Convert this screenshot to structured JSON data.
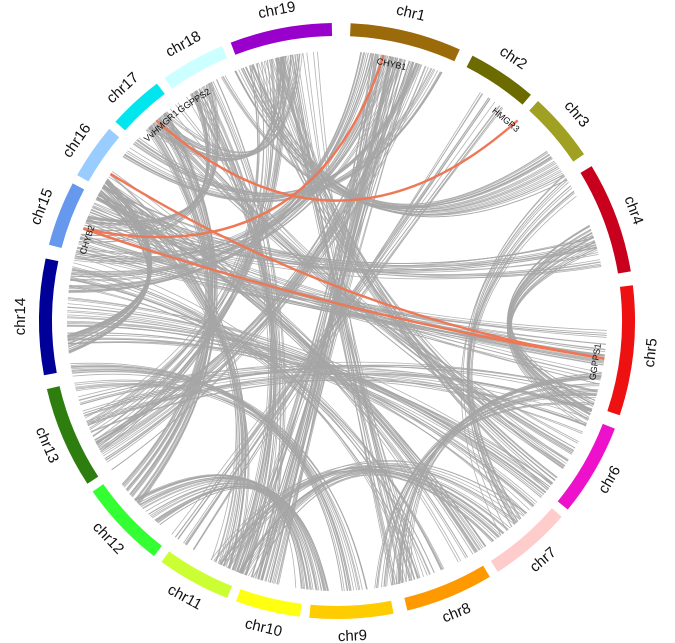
{
  "diagram": {
    "type": "circos",
    "chromosomes": [
      {
        "name": "chr1",
        "color": "#9b6a0a"
      },
      {
        "name": "chr2",
        "color": "#6b6b00"
      },
      {
        "name": "chr3",
        "color": "#a0a022"
      },
      {
        "name": "chr4",
        "color": "#c8001e"
      },
      {
        "name": "chr5",
        "color": "#ee1111"
      },
      {
        "name": "chr6",
        "color": "#ee11cc"
      },
      {
        "name": "chr7",
        "color": "#ffcccc"
      },
      {
        "name": "chr8",
        "color": "#ff9900"
      },
      {
        "name": "chr9",
        "color": "#ffcc00"
      },
      {
        "name": "chr10",
        "color": "#ffff11"
      },
      {
        "name": "chr11",
        "color": "#ccff33"
      },
      {
        "name": "chr12",
        "color": "#33ff33"
      },
      {
        "name": "chr13",
        "color": "#2e7d0f"
      },
      {
        "name": "chr14",
        "color": "#000099"
      },
      {
        "name": "chr15",
        "color": "#6699ee"
      },
      {
        "name": "chr16",
        "color": "#99ccff"
      },
      {
        "name": "chr17",
        "color": "#00e5ee"
      },
      {
        "name": "chr18",
        "color": "#ccffff"
      },
      {
        "name": "chr19",
        "color": "#9900cc"
      }
    ],
    "genes": [
      {
        "name": "CHYB1"
      },
      {
        "name": "HMGR3"
      },
      {
        "name": "GGPPS1"
      },
      {
        "name": "CHYB2"
      },
      {
        "name": "VvHMGR1"
      },
      {
        "name": "GGPPS2"
      }
    ],
    "link_color": "#a6a6a6",
    "highlight_color": "#ee7755"
  }
}
